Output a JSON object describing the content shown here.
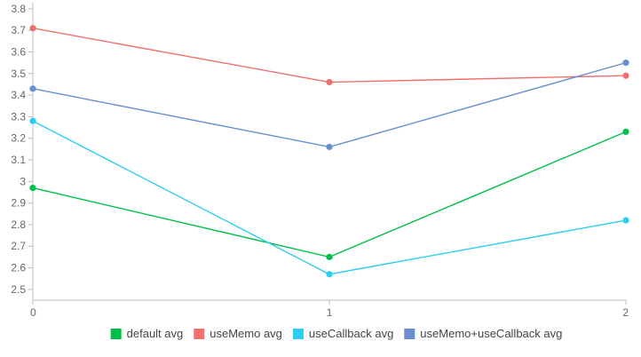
{
  "chart_data": {
    "type": "line",
    "x": [
      0,
      1,
      2
    ],
    "xlim": [
      0,
      2
    ],
    "ylim": [
      2.45,
      3.82
    ],
    "y_ticks": [
      2.5,
      2.6,
      2.7,
      2.8,
      2.9,
      3,
      3.1,
      3.2,
      3.3,
      3.4,
      3.5,
      3.6,
      3.7,
      3.8
    ],
    "y_tick_labels": [
      "2.5",
      "2.6",
      "2.7",
      "2.8",
      "2.9",
      "3",
      "3.1",
      "3.2",
      "3.3",
      "3.4",
      "3.5",
      "3.6",
      "3.7",
      "3.8"
    ],
    "x_tick_labels": [
      "0",
      "1",
      "2"
    ],
    "grid": false,
    "legend_position": "bottom-center",
    "title": "",
    "xlabel": "",
    "ylabel": "",
    "series": [
      {
        "name": "default avg",
        "color": "#00c04b",
        "values": [
          2.97,
          2.65,
          3.23
        ]
      },
      {
        "name": "useMemo avg",
        "color": "#f07070",
        "values": [
          3.71,
          3.46,
          3.49
        ]
      },
      {
        "name": "useCallback avg",
        "color": "#2dcdf2",
        "values": [
          3.28,
          2.57,
          2.82
        ]
      },
      {
        "name": "useMemo+useCallback avg",
        "color": "#6b8fcd",
        "values": [
          3.43,
          3.16,
          3.55
        ]
      }
    ]
  }
}
